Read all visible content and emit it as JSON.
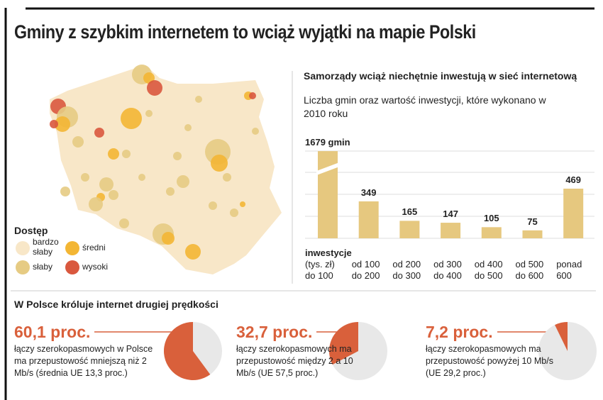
{
  "title": "Gminy z szybkim internetem to wciąż wyjątki na mapie Polski",
  "map": {
    "fill": "#f8e7c8",
    "legend_title": "Dostęp",
    "legend": [
      {
        "label": "bardzo słaby",
        "color": "#f8e7c8"
      },
      {
        "label": "słaby",
        "color": "#e6cb83"
      },
      {
        "label": "średni",
        "color": "#f3b634"
      },
      {
        "label": "wysoki",
        "color": "#d9583e"
      }
    ]
  },
  "section_title": "W Polsce króluje internet drugiej prędkości",
  "chart_data": [
    {
      "type": "bar",
      "title": "Samorządy wciąż niechętnie inwestują w sieć internetową",
      "subtitle": "Liczba gmin oraz wartość inwestycji, które wykonano w 2010 roku",
      "x_label": "inwestycje",
      "x_unit": "(tys. zł)",
      "categories": [
        "do 100",
        "od 100 do 200",
        "od 200 do 300",
        "od 300 do 400",
        "od 400 do 500",
        "od 500 do 600",
        "ponad 600"
      ],
      "values": [
        1679,
        349,
        165,
        147,
        105,
        75,
        469
      ],
      "value_labels": [
        "1679 gmin",
        "349",
        "165",
        "147",
        "105",
        "75",
        "469"
      ],
      "color": "#e6c87f",
      "axis_break": true
    },
    {
      "type": "pie",
      "values": [
        60.1
      ],
      "value_labels": [
        "60,1 proc."
      ],
      "colors": [
        "#d9603b"
      ],
      "background": "#e8e8e8",
      "text": "łączy szerokopasmowych w Polsce ma przepustowość mniejszą niż 2 Mb/s (średnia UE 13,3 proc.)"
    },
    {
      "type": "pie",
      "values": [
        32.7
      ],
      "value_labels": [
        "32,7 proc."
      ],
      "colors": [
        "#d9603b"
      ],
      "background": "#e8e8e8",
      "text": "łączy szerokopasmowych ma przepustowość między 2 a 10 Mb/s (UE 57,5 proc.)"
    },
    {
      "type": "pie",
      "values": [
        7.2
      ],
      "value_labels": [
        "7,2 proc."
      ],
      "colors": [
        "#d9603b"
      ],
      "background": "#e8e8e8",
      "text": "łączy szerokopasmowych ma przepustowość powyżej 10 Mb/s (UE 29,2 proc.)"
    }
  ]
}
